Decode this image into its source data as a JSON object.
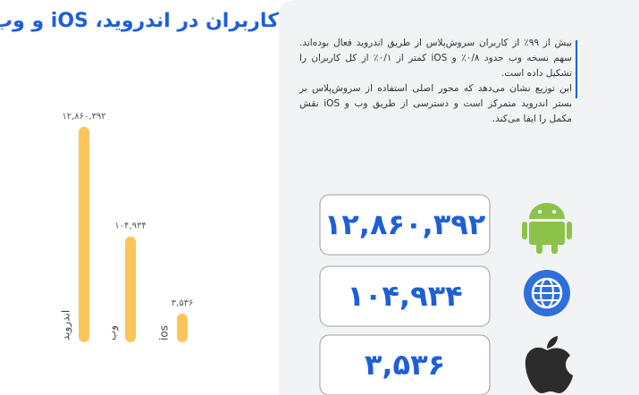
{
  "chart_data": {
    "type": "bar",
    "title": "کاربران در اندروید، iOS و وب",
    "categories": [
      "اندروید",
      "وب",
      "ios"
    ],
    "values": [
      12860392,
      104934,
      3536
    ],
    "value_labels": [
      "۱۲,۸۶۰,۳۹۲",
      "۱۰۴,۹۳۴",
      "۳,۵۳۶"
    ],
    "color": "#fcc55a",
    "log_scale": true,
    "ylim": [
      1000,
      15000000
    ]
  },
  "description": [
    "بیش از ۹۹٪ از کاربران سروش‌پلاس از طریق اندروید فعال بوده‌اند. سهم نسخه وب حدود ۰/۸٪ و iOS کمتر از ۰/۱٪ از کل کاربران را تشکیل داده است.",
    "این توزیع نشان می‌دهد که محور اصلی استفاده از سروش‌پلاس بر بستر اندروید متمرکز است و دسترسی از طریق وب و iOS نقش مکمل را ایفا می‌کند."
  ]
}
